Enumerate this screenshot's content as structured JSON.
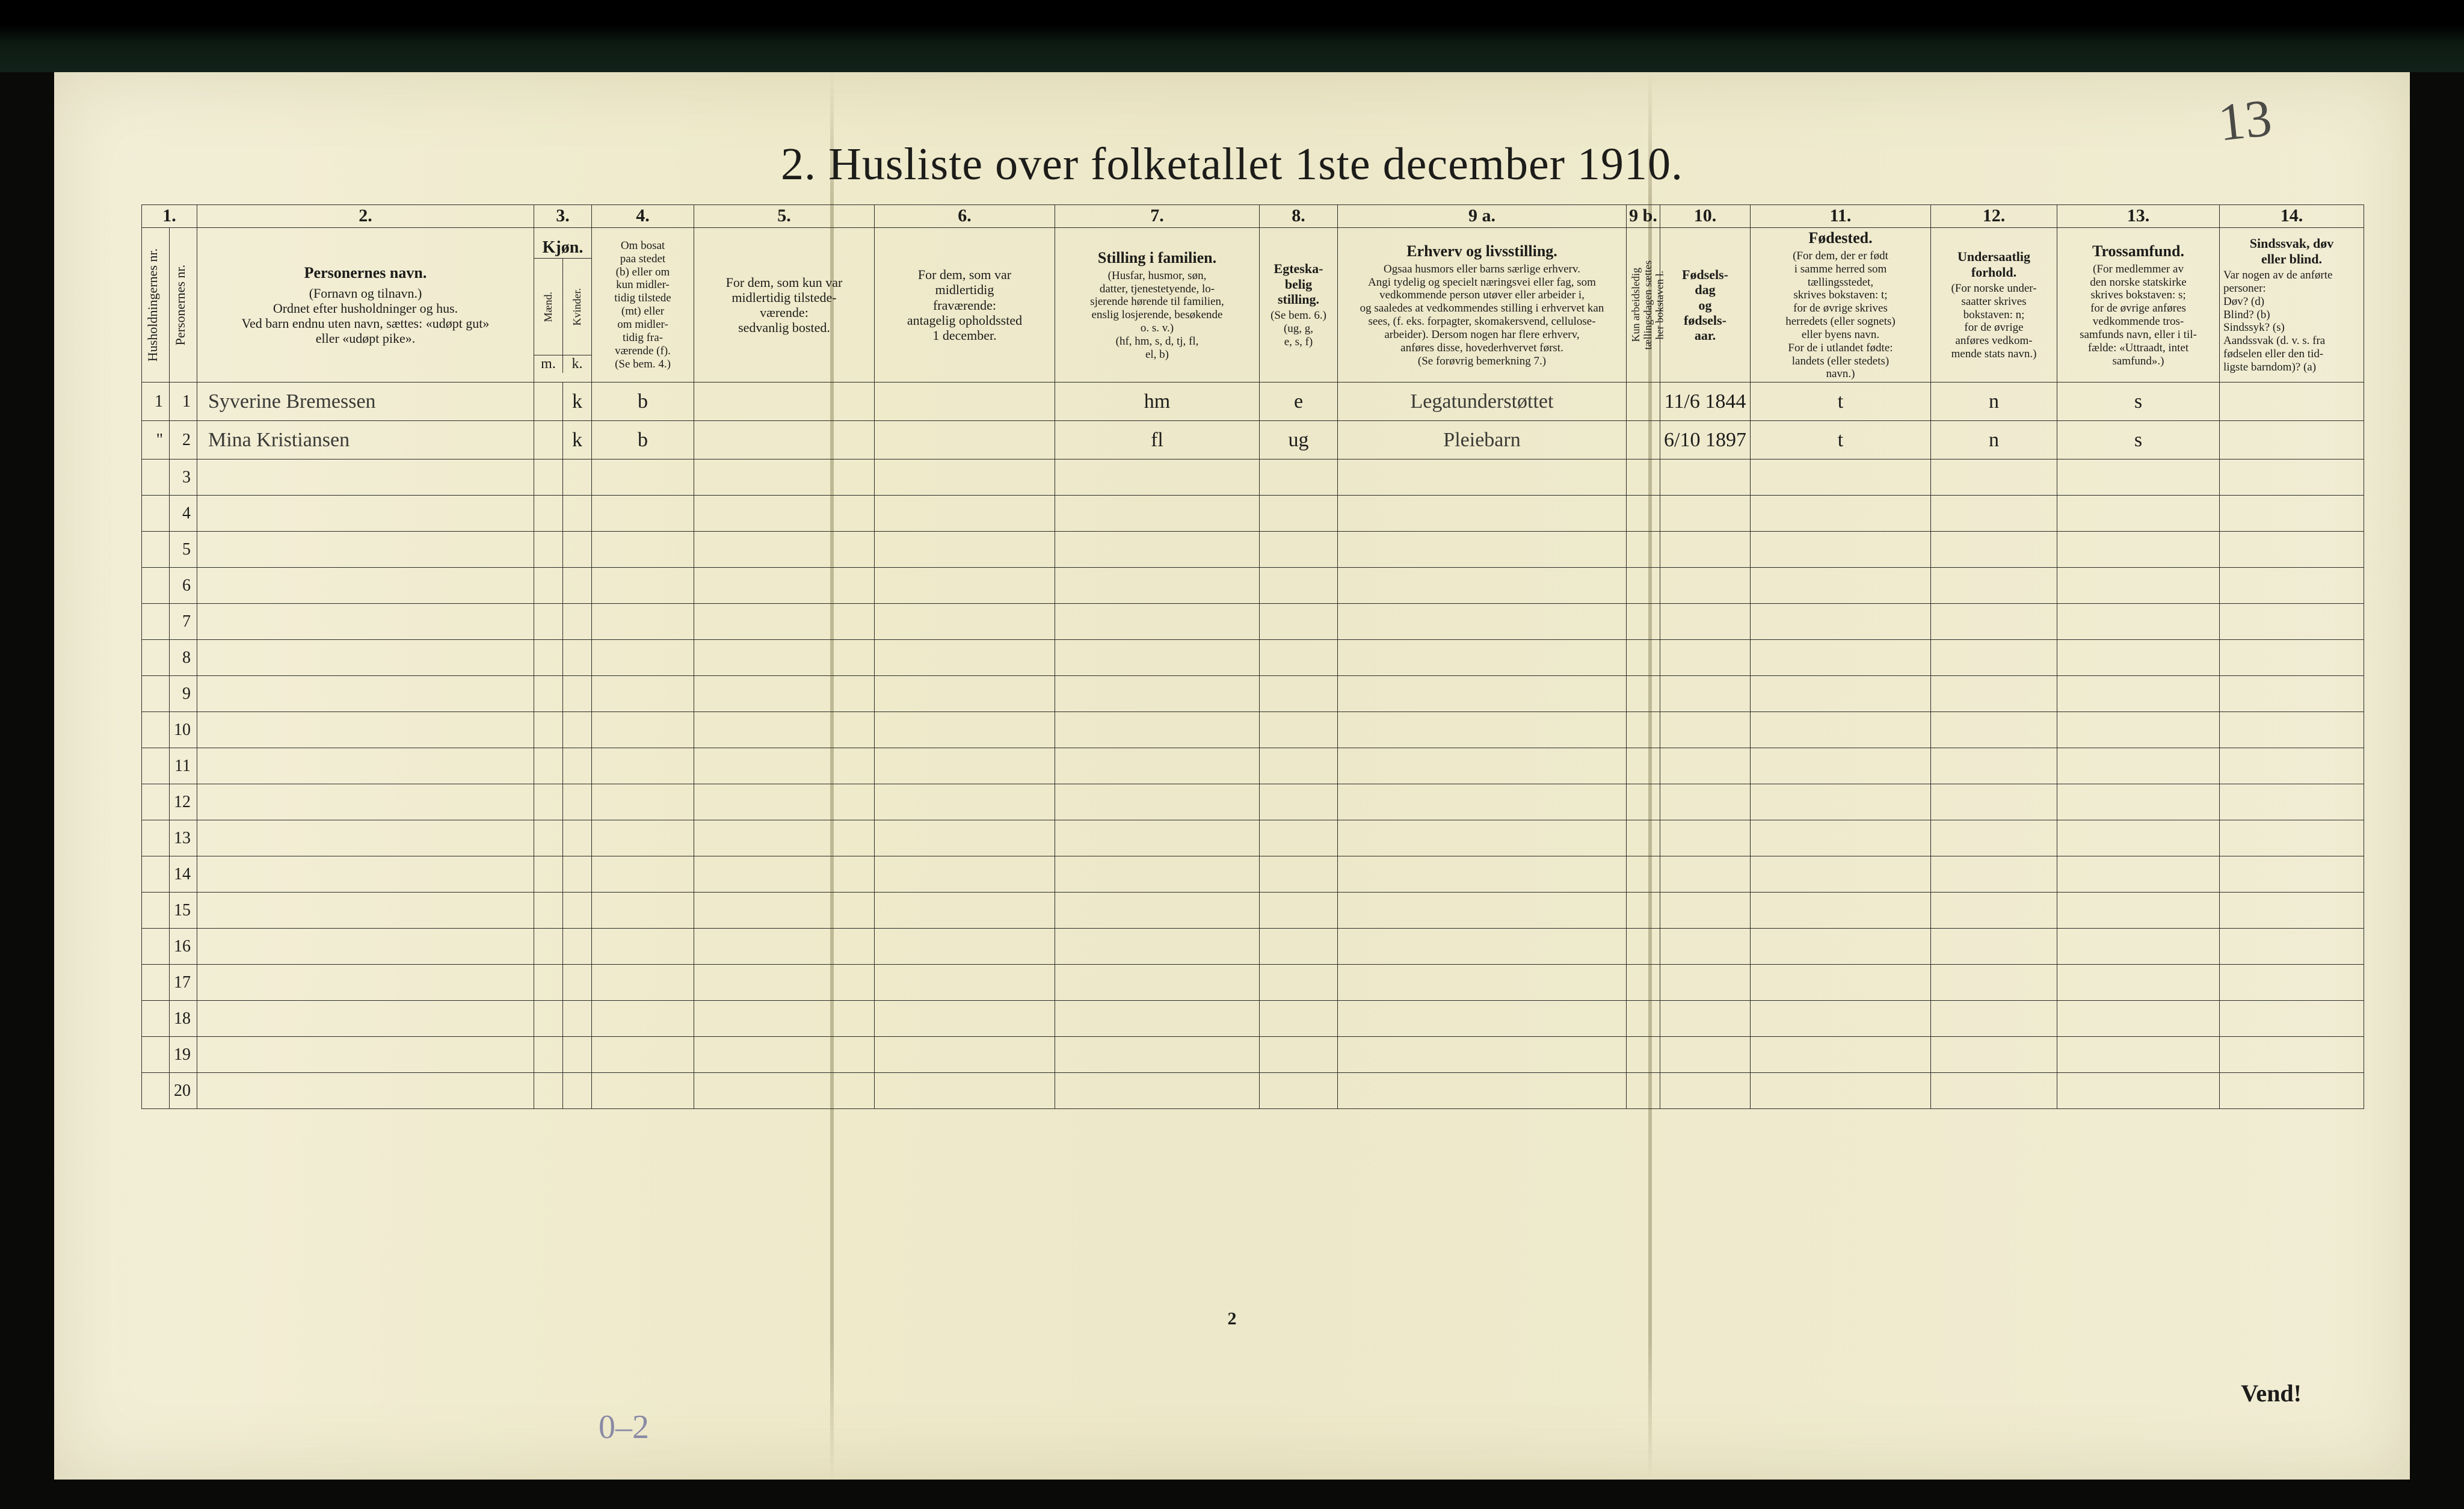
{
  "page": {
    "title": "2.  Husliste over folketallet 1ste december 1910.",
    "handwritten_top_right": "13",
    "footer_page_number": "2",
    "footer_vend": "Vend!",
    "pencil_bottom": "0–2",
    "background_color": "#efeacb",
    "ink_color": "#1c1c1a",
    "handwriting_color": "#3a3a36"
  },
  "columns": {
    "nums": [
      "1.",
      "2.",
      "3.",
      "4.",
      "5.",
      "6.",
      "7.",
      "8.",
      "9 a.",
      "9 b.",
      "10.",
      "11.",
      "12.",
      "13.",
      "14."
    ],
    "c1a": "Husholdningernes nr.",
    "c1b": "Personernes nr.",
    "c2_title": "Personernes navn.",
    "c2_sub": "(Fornavn og tilnavn.)\nOrdnet efter husholdninger og hus.\nVed barn endnu uten navn, sættes: «udøpt gut»\neller «udøpt pike».",
    "c3_title": "Kjøn.",
    "c3_m": "Mænd.",
    "c3_k": "Kvinder.",
    "c3_mk_m": "m.",
    "c3_mk_k": "k.",
    "c4": "Om bosat\npaa stedet\n(b) eller om\nkun midler-\ntidig tilstede\n(mt) eller\nom midler-\ntidig fra-\nværende (f).\n(Se bem. 4.)",
    "c5": "For dem, som kun var\nmidlertidig tilstede-\nværende:\nsedvanlig bosted.",
    "c6": "For dem, som var\nmidlertidig\nfraværende:\nantagelig opholdssted\n1 december.",
    "c7_title": "Stilling i familien.",
    "c7_sub": "(Husfar, husmor, søn,\ndatter, tjenestetyende, lo-\nsjerende hørende til familien,\nenslig losjerende, besøkende\no. s. v.)\n(hf, hm, s, d, tj, fl,\nel, b)",
    "c8_title": "Egteska-\nbelig\nstilling.",
    "c8_sub": "(Se bem. 6.)\n(ug, g,\ne, s, f)",
    "c9a_title": "Erhverv og livsstilling.",
    "c9a_sub": "Ogsaa husmors eller barns særlige erhverv.\nAngi tydelig og specielt næringsvei eller fag, som\nvedkommende person utøver eller arbeider i,\nog saaledes at vedkommendes stilling i erhvervet kan\nsees, (f. eks. forpagter, skomakersvend, cellulose-\narbeider). Dersom nogen har flere erhverv,\nanføres disse, hovederhvervet først.\n(Se forøvrig bemerkning 7.)",
    "c9b": "Kun arbeidsledig\ntællingsdagen sættes\nher bokstaven l.",
    "c10": "Fødsels-\ndag\nog\nfødsels-\naar.",
    "c11_title": "Fødested.",
    "c11_sub": "(For dem, der er født\ni samme herred som\ntællingsstedet,\nskrives bokstaven: t;\nfor de øvrige skrives\nherredets (eller sognets)\neller byens navn.\nFor de i utlandet fødte:\nlandets (eller stedets)\nnavn.)",
    "c12_title": "Undersaatlig\nforhold.",
    "c12_sub": "(For norske under-\nsaatter skrives\nbokstaven: n;\nfor de øvrige\nanføres vedkom-\nmende stats navn.)",
    "c13_title": "Trossamfund.",
    "c13_sub": "(For medlemmer av\nden norske statskirke\nskrives bokstaven: s;\nfor de øvrige anføres\nvedkommende tros-\nsamfunds navn, eller i til-\nfælde: «Uttraadt, intet\nsamfund».)",
    "c14_title": "Sindssvak, døv\neller blind.",
    "c14_sub": "Var nogen av de anførte\npersoner:\nDøv?        (d)\nBlind?       (b)\nSindssyk?  (s)\nAandssvak (d. v. s. fra\nfødselen eller den tid-\nligste barndom)?  (a)"
  },
  "rows": [
    {
      "hh": "1",
      "pn": "1",
      "name": "Syverine Bremessen",
      "kj_m": "",
      "kj_k": "k",
      "c4": "b",
      "c5": "",
      "c6": "",
      "c7": "hm",
      "c8": "e",
      "c9a": "Legatunderstøttet",
      "c9b": "",
      "c10": "11/6 1844",
      "c11": "t",
      "c12": "n",
      "c13": "s",
      "c14": ""
    },
    {
      "hh": "\"",
      "pn": "2",
      "name": "Mina Kristiansen",
      "kj_m": "",
      "kj_k": "k",
      "c4": "b",
      "c5": "",
      "c6": "",
      "c7": "fl",
      "c8": "ug",
      "c9a": "Pleiebarn",
      "c9b": "",
      "c10": "6/10 1897",
      "c11": "t",
      "c12": "n",
      "c13": "s",
      "c14": ""
    }
  ],
  "empty_row_numbers": [
    "3",
    "4",
    "5",
    "6",
    "7",
    "8",
    "9",
    "10",
    "11",
    "12",
    "13",
    "14",
    "15",
    "16",
    "17",
    "18",
    "19",
    "20"
  ]
}
